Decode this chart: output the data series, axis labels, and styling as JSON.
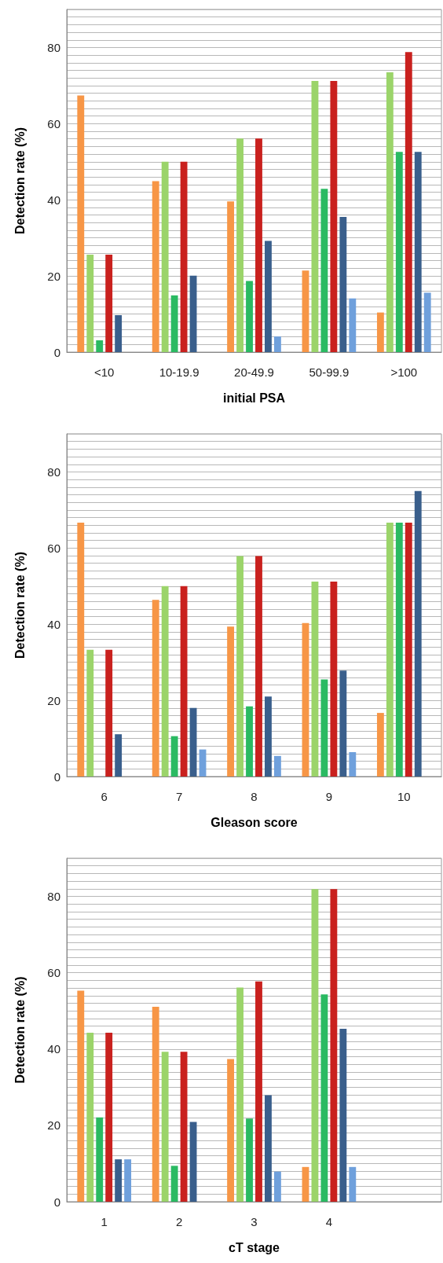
{
  "chart_data": [
    {
      "type": "bar",
      "xlabel": "initial PSA",
      "ylabel": "Detection rate (%)",
      "categories": [
        "<10",
        "10-19.9",
        "20-49.9",
        "50-99.9",
        ">100"
      ],
      "series": [
        {
          "color": "#f79646",
          "values": [
            67.4,
            44.9,
            39.6,
            21.4,
            10.4
          ]
        },
        {
          "color": "#9bd46a",
          "values": [
            25.6,
            50,
            56.1,
            71.2,
            73.5
          ]
        },
        {
          "color": "#2aba62",
          "values": [
            3.1,
            14.9,
            18.7,
            42.9,
            52.6
          ]
        },
        {
          "color": "#c9211e",
          "values": [
            25.6,
            50,
            56.1,
            71.2,
            78.8
          ]
        },
        {
          "color": "#3a5f8c",
          "values": [
            9.7,
            20.1,
            29.2,
            35.5,
            52.6
          ]
        },
        {
          "color": "#6fa0dc",
          "values": [
            null,
            null,
            4.1,
            14.1,
            15.6
          ]
        }
      ],
      "ylim": [
        0,
        90
      ],
      "yticks": [
        0,
        {
          "value": 2,
          "label": null
        },
        {
          "value": 4,
          "label": null
        },
        {
          "value": 6,
          "label": null
        },
        {
          "value": 8,
          "label": null
        },
        {
          "value": 10,
          "label": null
        },
        {
          "value": 12,
          "label": null
        },
        {
          "value": 14,
          "label": null
        },
        {
          "value": 16,
          "label": null
        },
        {
          "value": 18,
          "label": null
        },
        20,
        {
          "value": 22,
          "label": null
        },
        {
          "value": 24,
          "label": null
        },
        {
          "value": 26,
          "label": null
        },
        {
          "value": 28,
          "label": null
        },
        {
          "value": 30,
          "label": null
        },
        {
          "value": 32,
          "label": null
        },
        {
          "value": 34,
          "label": null
        },
        {
          "value": 36,
          "label": null
        },
        {
          "value": 38,
          "label": null
        },
        40,
        {
          "value": 42,
          "label": null
        },
        {
          "value": 44,
          "label": null
        },
        {
          "value": 46,
          "label": null
        },
        {
          "value": 48,
          "label": null
        },
        {
          "value": 50,
          "label": null
        },
        {
          "value": 52,
          "label": null
        },
        {
          "value": 54,
          "label": null
        },
        {
          "value": 56,
          "label": null
        },
        {
          "value": 58,
          "label": null
        },
        60,
        {
          "value": 62,
          "label": null
        },
        {
          "value": 64,
          "label": null
        },
        {
          "value": 66,
          "label": null
        },
        {
          "value": 68,
          "label": null
        },
        {
          "value": 70,
          "label": null
        },
        {
          "value": 72,
          "label": null
        },
        {
          "value": 74,
          "label": null
        },
        {
          "value": 76,
          "label": null
        },
        {
          "value": 78,
          "label": null
        },
        80,
        {
          "value": 82,
          "label": null
        },
        {
          "value": 84,
          "label": null
        },
        {
          "value": 86,
          "label": null
        },
        {
          "value": 88,
          "label": null
        },
        {
          "value": 90,
          "label": null
        }
      ],
      "grid": "y"
    },
    {
      "type": "bar",
      "xlabel": "Gleason score",
      "ylabel": "Detection rate (%)",
      "categories": [
        "6",
        "7",
        "8",
        "9",
        "10"
      ],
      "series": [
        {
          "color": "#f79646",
          "values": [
            66.7,
            46.4,
            39.4,
            40.3,
            16.7
          ]
        },
        {
          "color": "#9bd46a",
          "values": [
            33.3,
            50,
            57.9,
            51.2,
            66.7
          ]
        },
        {
          "color": "#2aba62",
          "values": [
            null,
            10.6,
            18.4,
            25.5,
            66.7
          ]
        },
        {
          "color": "#c9211e",
          "values": [
            33.3,
            50,
            57.9,
            51.2,
            66.7
          ]
        },
        {
          "color": "#3a5f8c",
          "values": [
            11.1,
            18,
            21,
            27.8,
            75
          ]
        },
        {
          "color": "#6fa0dc",
          "values": [
            null,
            7.1,
            5.4,
            6.4,
            null
          ]
        }
      ],
      "ylim": [
        0,
        90
      ],
      "yticks": [
        0,
        {
          "value": 2,
          "label": null
        },
        {
          "value": 4,
          "label": null
        },
        {
          "value": 6,
          "label": null
        },
        {
          "value": 8,
          "label": null
        },
        {
          "value": 10,
          "label": null
        },
        {
          "value": 12,
          "label": null
        },
        {
          "value": 14,
          "label": null
        },
        {
          "value": 16,
          "label": null
        },
        {
          "value": 18,
          "label": null
        },
        20,
        {
          "value": 22,
          "label": null
        },
        {
          "value": 24,
          "label": null
        },
        {
          "value": 26,
          "label": null
        },
        {
          "value": 28,
          "label": null
        },
        {
          "value": 30,
          "label": null
        },
        {
          "value": 32,
          "label": null
        },
        {
          "value": 34,
          "label": null
        },
        {
          "value": 36,
          "label": null
        },
        {
          "value": 38,
          "label": null
        },
        40,
        {
          "value": 42,
          "label": null
        },
        {
          "value": 44,
          "label": null
        },
        {
          "value": 46,
          "label": null
        },
        {
          "value": 48,
          "label": null
        },
        {
          "value": 50,
          "label": null
        },
        {
          "value": 52,
          "label": null
        },
        {
          "value": 54,
          "label": null
        },
        {
          "value": 56,
          "label": null
        },
        {
          "value": 58,
          "label": null
        },
        60,
        {
          "value": 62,
          "label": null
        },
        {
          "value": 64,
          "label": null
        },
        {
          "value": 66,
          "label": null
        },
        {
          "value": 68,
          "label": null
        },
        {
          "value": 70,
          "label": null
        },
        {
          "value": 72,
          "label": null
        },
        {
          "value": 74,
          "label": null
        },
        {
          "value": 76,
          "label": null
        },
        {
          "value": 78,
          "label": null
        },
        80,
        {
          "value": 82,
          "label": null
        },
        {
          "value": 84,
          "label": null
        },
        {
          "value": 86,
          "label": null
        },
        {
          "value": 88,
          "label": null
        },
        {
          "value": 90,
          "label": null
        }
      ],
      "grid": "y"
    },
    {
      "type": "bar",
      "xlabel": "cT stage",
      "ylabel": "Detection rate (%)",
      "categories": [
        "1",
        "2",
        "3",
        "4",
        null
      ],
      "series": [
        {
          "color": "#f79646",
          "values": [
            55.3,
            51.1,
            37.4,
            9.1,
            null
          ]
        },
        {
          "color": "#9bd46a",
          "values": [
            44.3,
            39.3,
            56.1,
            81.9,
            null
          ]
        },
        {
          "color": "#2aba62",
          "values": [
            22.1,
            9.4,
            21.8,
            54.3,
            null
          ]
        },
        {
          "color": "#c9211e",
          "values": [
            44.3,
            39.3,
            57.7,
            81.9,
            null
          ]
        },
        {
          "color": "#3a5f8c",
          "values": [
            11.1,
            20.9,
            27.9,
            45.3,
            null
          ]
        },
        {
          "color": "#6fa0dc",
          "values": [
            11.1,
            null,
            7.9,
            9.1,
            null
          ]
        }
      ],
      "ylim": [
        0,
        90
      ],
      "yticks": [
        0,
        {
          "value": 2,
          "label": null
        },
        {
          "value": 4,
          "label": null
        },
        {
          "value": 6,
          "label": null
        },
        {
          "value": 8,
          "label": null
        },
        {
          "value": 10,
          "label": null
        },
        {
          "value": 12,
          "label": null
        },
        {
          "value": 14,
          "label": null
        },
        {
          "value": 16,
          "label": null
        },
        {
          "value": 18,
          "label": null
        },
        20,
        {
          "value": 22,
          "label": null
        },
        {
          "value": 24,
          "label": null
        },
        {
          "value": 26,
          "label": null
        },
        {
          "value": 28,
          "label": null
        },
        {
          "value": 30,
          "label": null
        },
        {
          "value": 32,
          "label": null
        },
        {
          "value": 34,
          "label": null
        },
        {
          "value": 36,
          "label": null
        },
        {
          "value": 38,
          "label": null
        },
        40,
        {
          "value": 42,
          "label": null
        },
        {
          "value": 44,
          "label": null
        },
        {
          "value": 46,
          "label": null
        },
        {
          "value": 48,
          "label": null
        },
        {
          "value": 50,
          "label": null
        },
        {
          "value": 52,
          "label": null
        },
        {
          "value": 54,
          "label": null
        },
        {
          "value": 56,
          "label": null
        },
        {
          "value": 58,
          "label": null
        },
        60,
        {
          "value": 62,
          "label": null
        },
        {
          "value": 64,
          "label": null
        },
        {
          "value": 66,
          "label": null
        },
        {
          "value": 68,
          "label": null
        },
        {
          "value": 70,
          "label": null
        },
        {
          "value": 72,
          "label": null
        },
        {
          "value": 74,
          "label": null
        },
        {
          "value": 76,
          "label": null
        },
        {
          "value": 78,
          "label": null
        },
        80,
        {
          "value": 82,
          "label": null
        },
        {
          "value": 84,
          "label": null
        },
        {
          "value": 86,
          "label": null
        },
        {
          "value": 88,
          "label": null
        },
        {
          "value": 90,
          "label": null
        }
      ],
      "grid": "y"
    }
  ]
}
